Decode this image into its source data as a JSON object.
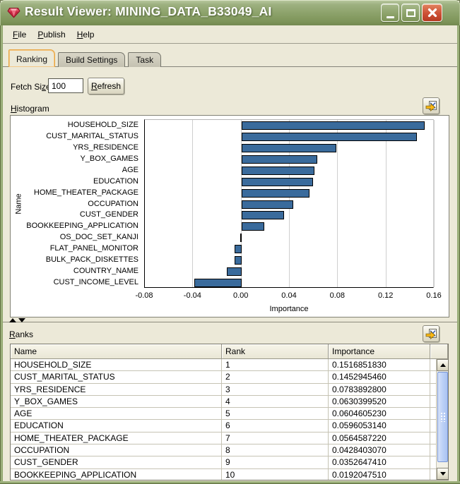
{
  "window": {
    "title": "Result Viewer: MINING_DATA_B33049_AI",
    "icon": "gem-icon",
    "controls": [
      "minimize",
      "maximize",
      "close"
    ]
  },
  "menu": {
    "items": [
      {
        "label": "File",
        "mnemonic": "F"
      },
      {
        "label": "Publish",
        "mnemonic": "P"
      },
      {
        "label": "Help",
        "mnemonic": "H"
      }
    ]
  },
  "tabs": [
    {
      "label": "Ranking",
      "active": true
    },
    {
      "label": "Build Settings",
      "active": false
    },
    {
      "label": "Task",
      "active": false
    }
  ],
  "fetch_size": {
    "label": "Fetch Size:",
    "mnemonic": "z",
    "value": "100"
  },
  "refresh_button": {
    "label": "Refresh",
    "mnemonic": "R"
  },
  "histogram_section": {
    "label": "Histogram",
    "mnemonic": "H",
    "export_icon": "export-arrow-icon"
  },
  "chart_data": {
    "type": "bar",
    "orientation": "horizontal",
    "title": "",
    "xlabel": "Importance",
    "ylabel": "Name",
    "xlim": [
      -0.08,
      0.16
    ],
    "xticks": [
      -0.08,
      -0.04,
      0.0,
      0.04,
      0.08,
      0.12,
      0.16
    ],
    "xtick_labels": [
      "-0.08",
      "-0.04",
      "0.00",
      "0.04",
      "0.08",
      "0.12",
      "0.16"
    ],
    "grid": true,
    "legend": false,
    "bar_color": "#3a6b9c",
    "bar_border": "#000000",
    "categories": [
      "HOUSEHOLD_SIZE",
      "CUST_MARITAL_STATUS",
      "YRS_RESIDENCE",
      "Y_BOX_GAMES",
      "AGE",
      "EDUCATION",
      "HOME_THEATER_PACKAGE",
      "OCCUPATION",
      "CUST_GENDER",
      "BOOKKEEPING_APPLICATION",
      "OS_DOC_SET_KANJI",
      "FLAT_PANEL_MONITOR",
      "BULK_PACK_DISKETTES",
      "COUNTRY_NAME",
      "CUST_INCOME_LEVEL"
    ],
    "values": [
      0.151685183,
      0.145294546,
      0.07838928,
      0.063039952,
      0.060460523,
      0.059605314,
      0.056458722,
      0.042840307,
      0.035264741,
      0.019204751,
      -0.001,
      -0.0055,
      -0.0055,
      -0.012,
      -0.039
    ]
  },
  "ranks_section": {
    "label": "Ranks",
    "mnemonic": "R",
    "export_icon": "export-arrow-icon"
  },
  "ranks_table": {
    "columns": [
      "Name",
      "Rank",
      "Importance"
    ],
    "rows": [
      [
        "HOUSEHOLD_SIZE",
        "1",
        "0.1516851830"
      ],
      [
        "CUST_MARITAL_STATUS",
        "2",
        "0.1452945460"
      ],
      [
        "YRS_RESIDENCE",
        "3",
        "0.0783892800"
      ],
      [
        "Y_BOX_GAMES",
        "4",
        "0.0630399520"
      ],
      [
        "AGE",
        "5",
        "0.0604605230"
      ],
      [
        "EDUCATION",
        "6",
        "0.0596053140"
      ],
      [
        "HOME_THEATER_PACKAGE",
        "7",
        "0.0564587220"
      ],
      [
        "OCCUPATION",
        "8",
        "0.0428403070"
      ],
      [
        "CUST_GENDER",
        "9",
        "0.0352647410"
      ],
      [
        "BOOKKEEPING_APPLICATION",
        "10",
        "0.0192047510"
      ]
    ]
  },
  "colors": {
    "titlebar_olive": "#8ba169",
    "close_button": "#cd5136",
    "active_tab_border": "#e8a33d",
    "bar_blue": "#3a6b9c",
    "panel_background": "#ece9d8"
  }
}
